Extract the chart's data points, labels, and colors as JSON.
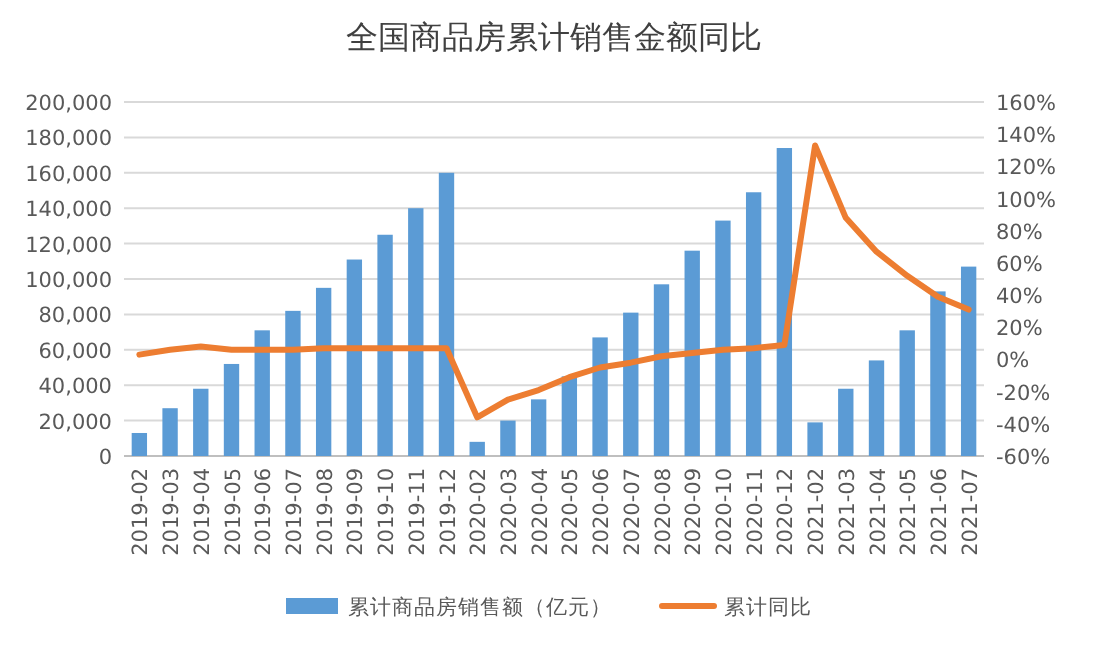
{
  "chart_data": {
    "type": "bar",
    "title": "全国商品房累计销售金额同比",
    "categories": [
      "2019-02",
      "2019-03",
      "2019-04",
      "2019-05",
      "2019-06",
      "2019-07",
      "2019-08",
      "2019-09",
      "2019-10",
      "2019-11",
      "2019-12",
      "2020-02",
      "2020-03",
      "2020-04",
      "2020-05",
      "2020-06",
      "2020-07",
      "2020-08",
      "2020-09",
      "2020-10",
      "2020-11",
      "2020-12",
      "2021-02",
      "2021-03",
      "2021-04",
      "2021-05",
      "2021-06",
      "2021-07"
    ],
    "series": [
      {
        "name": "累计商品房销售额（亿元）",
        "color": "#5b9bd5",
        "values": [
          13000,
          27000,
          38000,
          52000,
          71000,
          82000,
          95000,
          111000,
          125000,
          140000,
          160000,
          8000,
          20000,
          32000,
          45000,
          67000,
          81000,
          97000,
          116000,
          133000,
          149000,
          174000,
          19000,
          38000,
          54000,
          71000,
          93000,
          107000
        ]
      },
      {
        "name": "累计同比",
        "type": "line",
        "axis": "y2",
        "color": "#ed7d31",
        "values": [
          3,
          6,
          8,
          6,
          6,
          6,
          7,
          7,
          7,
          7,
          7,
          -36,
          -25,
          -19,
          -11,
          -5,
          -2,
          2,
          4,
          6,
          7,
          9,
          133,
          88,
          67,
          52,
          39,
          31
        ]
      }
    ],
    "ylim": [
      0,
      200000
    ],
    "yticks": [
      0,
      {
        "value": 20000,
        "label": "20,000"
      },
      {
        "value": 40000,
        "label": "40,000"
      },
      {
        "value": 60000,
        "label": "60,000"
      },
      {
        "value": 80000,
        "label": "80,000"
      },
      {
        "value": 100000,
        "label": "100,000"
      },
      {
        "value": 120000,
        "label": "120,000"
      },
      {
        "value": 140000,
        "label": "140,000"
      },
      {
        "value": 160000,
        "label": "160,000"
      },
      {
        "value": 180000,
        "label": "180,000"
      },
      {
        "value": 200000,
        "label": "200,000"
      }
    ],
    "y2lim": [
      -60,
      160
    ],
    "y2ticks": [
      {
        "value": -60,
        "label": "-60%"
      },
      {
        "value": -40,
        "label": "-40%"
      },
      {
        "value": -20,
        "label": "-20%"
      },
      {
        "value": 0,
        "label": "0%"
      },
      {
        "value": 20,
        "label": "20%"
      },
      {
        "value": 40,
        "label": "40%"
      },
      {
        "value": 60,
        "label": "60%"
      },
      {
        "value": 80,
        "label": "80%"
      },
      {
        "value": 100,
        "label": "100%"
      },
      {
        "value": 120,
        "label": "120%"
      },
      {
        "value": 140,
        "label": "140%"
      },
      {
        "value": 160,
        "label": "160%"
      }
    ],
    "grid": "y",
    "legend": "bottom"
  }
}
